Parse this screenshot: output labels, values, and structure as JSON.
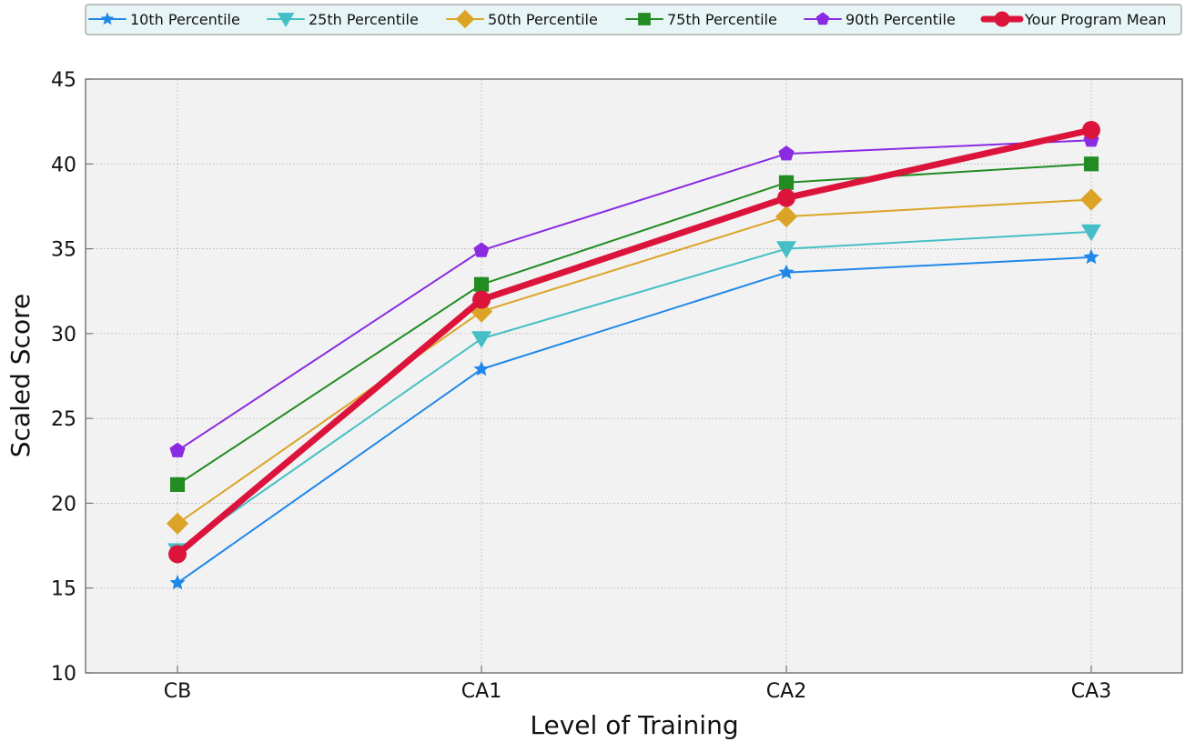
{
  "chart_data": {
    "type": "line",
    "categories": [
      "CB",
      "CA1",
      "CA2",
      "CA3"
    ],
    "xlabel": "Level of Training",
    "ylabel": "Scaled Score",
    "ylim": [
      10,
      45
    ],
    "yticks": [
      10,
      15,
      20,
      25,
      30,
      35,
      40,
      45
    ],
    "grid": true,
    "legend_position": "top",
    "series": [
      {
        "name": "10th Percentile",
        "values": [
          15.3,
          27.9,
          33.6,
          34.5
        ],
        "color": "#1f87e8",
        "marker": "star"
      },
      {
        "name": "25th Percentile",
        "values": [
          17.2,
          29.7,
          35.0,
          36.0
        ],
        "color": "#45bfc5",
        "marker": "triangle-down"
      },
      {
        "name": "50th Percentile",
        "values": [
          18.8,
          31.3,
          36.9,
          37.9
        ],
        "color": "#dba426",
        "marker": "diamond"
      },
      {
        "name": "75th Percentile",
        "values": [
          21.1,
          32.9,
          38.9,
          40.0
        ],
        "color": "#228b22",
        "marker": "square"
      },
      {
        "name": "90th Percentile",
        "values": [
          23.1,
          34.9,
          40.6,
          41.4
        ],
        "color": "#8a2be2",
        "marker": "pentagon"
      },
      {
        "name": "Your Program Mean",
        "values": [
          17.0,
          32.0,
          38.0,
          42.0
        ],
        "color": "#dc143c",
        "marker": "circle"
      }
    ]
  }
}
